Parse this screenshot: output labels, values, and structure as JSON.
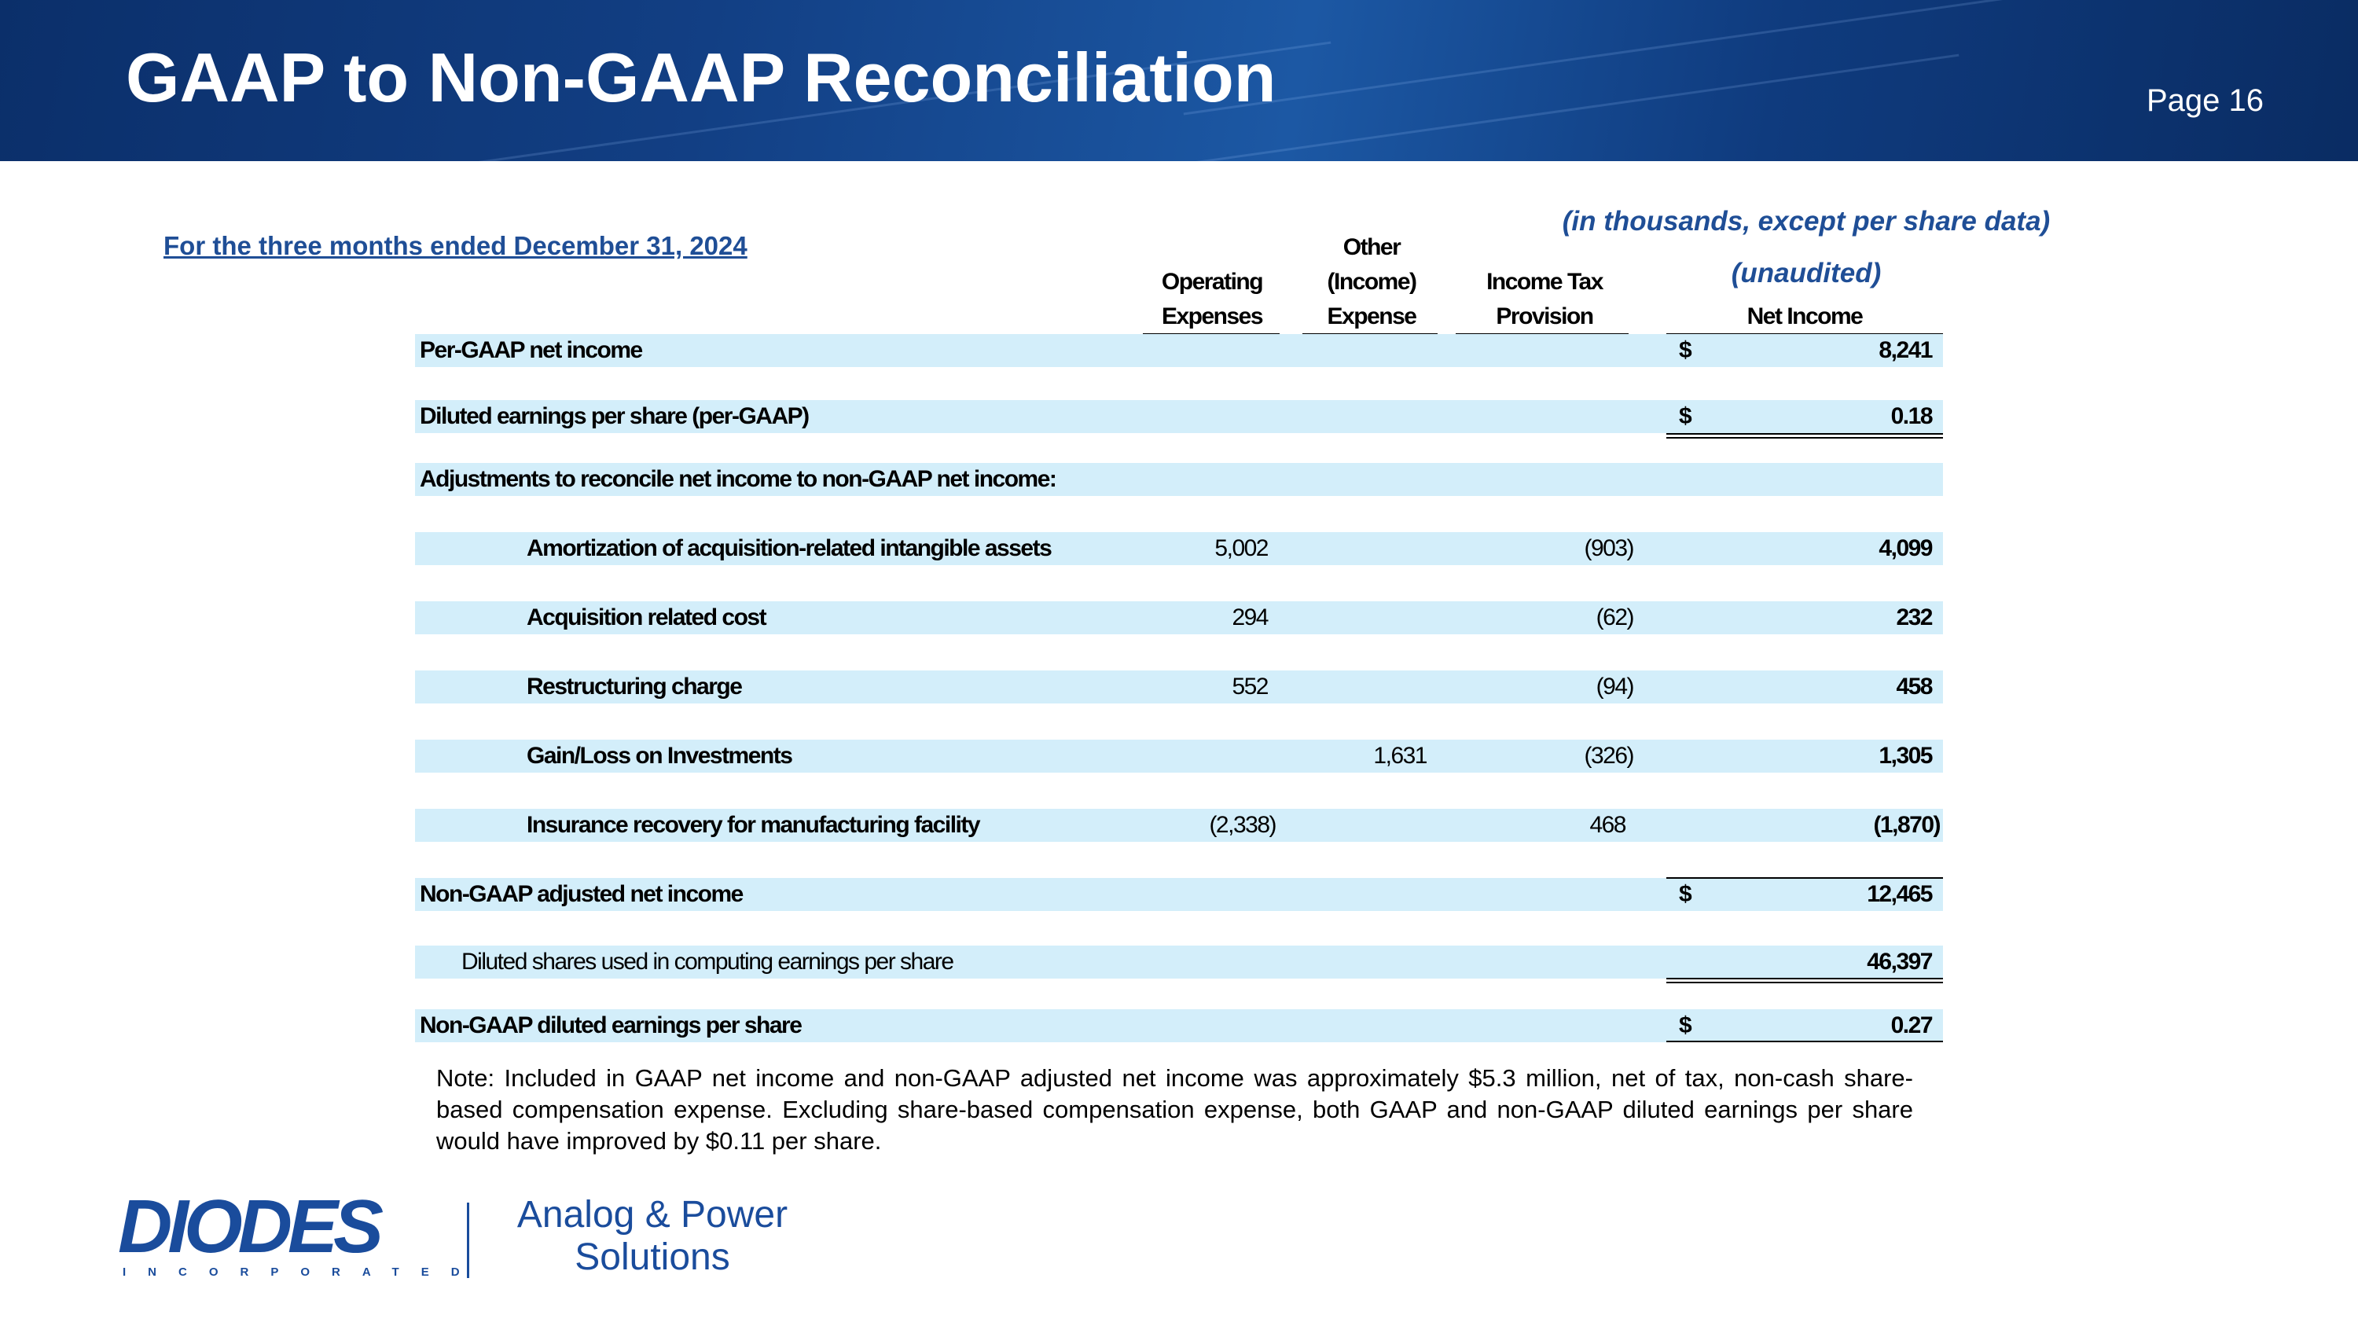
{
  "header": {
    "title": "GAAP to Non-GAAP Reconciliation",
    "page": "Page 16"
  },
  "subtitle": "For the three months ended December 31, 2024",
  "units_note": "(in thousands, except per share data)",
  "unaudited": "(unaudited)",
  "table": {
    "columns": [
      [
        "Operating",
        "Expenses"
      ],
      [
        "Other",
        "(Income)",
        "Expense"
      ],
      [
        "Income Tax",
        "Provision"
      ],
      [
        "Net Income"
      ]
    ],
    "rows": [
      {
        "label": "Per-GAAP net income",
        "cur": "$",
        "net": "8,241"
      },
      {
        "label": "Diluted earnings per share (per-GAAP)",
        "cur": "$",
        "net": "0.18"
      },
      {
        "label": "Adjustments to reconcile net income to non-GAAP net income:"
      },
      {
        "label": "Amortization of acquisition-related intangible assets",
        "opex": "5,002",
        "tax": "(903)",
        "net": "4,099"
      },
      {
        "label": "Acquisition related cost",
        "opex": "294",
        "tax": "(62)",
        "net": "232"
      },
      {
        "label": "Restructuring charge",
        "opex": "552",
        "tax": "(94)",
        "net": "458"
      },
      {
        "label": "Gain/Loss on Investments",
        "other": "1,631",
        "tax": "(326)",
        "net": "1,305"
      },
      {
        "label": "Insurance recovery for manufacturing facility",
        "opex": "(2,338)",
        "tax": "468",
        "net": "(1,870)"
      },
      {
        "label": "Non-GAAP adjusted net income",
        "cur": "$",
        "net": "12,465"
      },
      {
        "label": "Diluted shares used in computing earnings per share",
        "net": "46,397"
      },
      {
        "label": "Non-GAAP diluted earnings per share",
        "cur": "$",
        "net": "0.27"
      }
    ]
  },
  "note": "Note: Included in GAAP net income and non-GAAP adjusted net income was approximately $5.3 million, net of tax, non-cash share-based compensation expense. Excluding share-based compensation expense, both GAAP and non-GAAP diluted earnings per share would have improved by $0.11 per share.",
  "logo": {
    "name": "DIODES",
    "sub": "INCORPORATED",
    "tagline": [
      "Analog & Power",
      "Solutions"
    ]
  }
}
